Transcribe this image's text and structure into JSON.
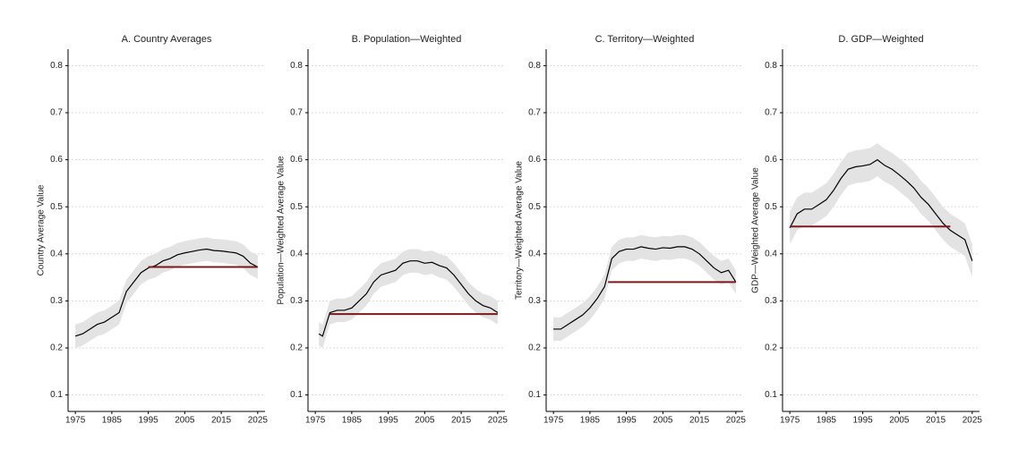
{
  "chart_data": [
    {
      "type": "line",
      "title": "A. Country Averages",
      "ylabel": "Country Average Value",
      "x": [
        1975,
        1977,
        1979,
        1981,
        1983,
        1985,
        1987,
        1989,
        1991,
        1993,
        1995,
        1997,
        1999,
        2001,
        2003,
        2005,
        2007,
        2009,
        2011,
        2013,
        2015,
        2017,
        2019,
        2021,
        2023,
        2025
      ],
      "values": [
        0.225,
        0.23,
        0.24,
        0.25,
        0.255,
        0.265,
        0.275,
        0.32,
        0.34,
        0.36,
        0.37,
        0.375,
        0.385,
        0.39,
        0.398,
        0.402,
        0.405,
        0.408,
        0.41,
        0.407,
        0.406,
        0.404,
        0.402,
        0.395,
        0.38,
        0.372
      ],
      "lower": [
        0.2,
        0.205,
        0.215,
        0.225,
        0.23,
        0.24,
        0.25,
        0.295,
        0.315,
        0.335,
        0.345,
        0.35,
        0.36,
        0.365,
        0.373,
        0.377,
        0.38,
        0.383,
        0.385,
        0.382,
        0.381,
        0.379,
        0.377,
        0.37,
        0.355,
        0.347
      ],
      "upper": [
        0.25,
        0.255,
        0.265,
        0.275,
        0.28,
        0.29,
        0.3,
        0.345,
        0.365,
        0.385,
        0.395,
        0.4,
        0.41,
        0.415,
        0.423,
        0.427,
        0.43,
        0.433,
        0.435,
        0.432,
        0.431,
        0.429,
        0.427,
        0.42,
        0.405,
        0.397
      ],
      "reference": {
        "value": 0.372,
        "x": [
          1995,
          2025
        ]
      },
      "color": "#000000",
      "band_color": "#e3e3e3",
      "reference_color": "#7b1a1a",
      "xlim": [
        1973,
        2027
      ],
      "ylim": [
        0.065,
        0.835
      ],
      "xticks": [
        1975,
        1985,
        1995,
        2005,
        2015,
        2025
      ],
      "yticks": [
        0.1,
        0.2,
        0.3,
        0.4,
        0.5,
        0.6,
        0.7,
        0.8
      ],
      "grid": true
    },
    {
      "type": "line",
      "title": "B. Population—Weighted",
      "ylabel": "Population—Weighted Average Value",
      "x": [
        1976,
        1977,
        1979,
        1981,
        1983,
        1985,
        1987,
        1989,
        1991,
        1993,
        1995,
        1997,
        1999,
        2001,
        2003,
        2005,
        2007,
        2009,
        2011,
        2013,
        2015,
        2017,
        2019,
        2021,
        2023,
        2025
      ],
      "values": [
        0.23,
        0.225,
        0.275,
        0.28,
        0.28,
        0.285,
        0.3,
        0.315,
        0.34,
        0.355,
        0.36,
        0.365,
        0.38,
        0.385,
        0.385,
        0.38,
        0.382,
        0.375,
        0.37,
        0.355,
        0.335,
        0.315,
        0.3,
        0.29,
        0.285,
        0.275
      ],
      "lower": [
        0.205,
        0.2,
        0.25,
        0.255,
        0.255,
        0.26,
        0.275,
        0.29,
        0.315,
        0.33,
        0.335,
        0.34,
        0.355,
        0.36,
        0.36,
        0.355,
        0.357,
        0.35,
        0.345,
        0.33,
        0.31,
        0.29,
        0.275,
        0.265,
        0.26,
        0.25
      ],
      "upper": [
        0.255,
        0.25,
        0.3,
        0.305,
        0.305,
        0.31,
        0.325,
        0.34,
        0.365,
        0.38,
        0.385,
        0.39,
        0.405,
        0.41,
        0.41,
        0.405,
        0.407,
        0.4,
        0.395,
        0.38,
        0.36,
        0.34,
        0.325,
        0.315,
        0.31,
        0.3
      ],
      "reference": {
        "value": 0.272,
        "x": [
          1979,
          2025
        ]
      },
      "color": "#000000",
      "band_color": "#e3e3e3",
      "reference_color": "#7b1a1a",
      "xlim": [
        1973,
        2027
      ],
      "ylim": [
        0.065,
        0.835
      ],
      "xticks": [
        1975,
        1985,
        1995,
        2005,
        2015,
        2025
      ],
      "yticks": [
        0.1,
        0.2,
        0.3,
        0.4,
        0.5,
        0.6,
        0.7,
        0.8
      ],
      "grid": true
    },
    {
      "type": "line",
      "title": "C. Territory—Weighted",
      "ylabel": "Territory—Weighted Average Value",
      "x": [
        1975,
        1977,
        1979,
        1981,
        1983,
        1985,
        1987,
        1989,
        1991,
        1993,
        1995,
        1997,
        1999,
        2001,
        2003,
        2005,
        2007,
        2009,
        2011,
        2013,
        2015,
        2017,
        2019,
        2021,
        2023,
        2025
      ],
      "values": [
        0.24,
        0.24,
        0.25,
        0.26,
        0.27,
        0.285,
        0.305,
        0.33,
        0.39,
        0.405,
        0.41,
        0.41,
        0.415,
        0.412,
        0.41,
        0.413,
        0.412,
        0.415,
        0.415,
        0.41,
        0.4,
        0.385,
        0.37,
        0.36,
        0.365,
        0.34
      ],
      "lower": [
        0.215,
        0.215,
        0.225,
        0.235,
        0.245,
        0.26,
        0.28,
        0.305,
        0.365,
        0.38,
        0.385,
        0.385,
        0.39,
        0.387,
        0.385,
        0.388,
        0.387,
        0.39,
        0.39,
        0.385,
        0.375,
        0.36,
        0.345,
        0.335,
        0.34,
        0.315
      ],
      "upper": [
        0.265,
        0.265,
        0.275,
        0.285,
        0.295,
        0.31,
        0.33,
        0.355,
        0.415,
        0.43,
        0.435,
        0.435,
        0.44,
        0.437,
        0.435,
        0.438,
        0.437,
        0.44,
        0.44,
        0.435,
        0.425,
        0.41,
        0.395,
        0.385,
        0.39,
        0.365
      ],
      "reference": {
        "value": 0.34,
        "x": [
          1990,
          2025
        ]
      },
      "color": "#000000",
      "band_color": "#e3e3e3",
      "reference_color": "#7b1a1a",
      "xlim": [
        1973,
        2027
      ],
      "ylim": [
        0.065,
        0.835
      ],
      "xticks": [
        1975,
        1985,
        1995,
        2005,
        2015,
        2025
      ],
      "yticks": [
        0.1,
        0.2,
        0.3,
        0.4,
        0.5,
        0.6,
        0.7,
        0.8
      ],
      "grid": true
    },
    {
      "type": "line",
      "title": "D. GDP—Weighted",
      "ylabel": "GDP—Weighted Average Value",
      "x": [
        1975,
        1977,
        1979,
        1981,
        1983,
        1985,
        1987,
        1989,
        1991,
        1993,
        1995,
        1997,
        1999,
        2001,
        2003,
        2005,
        2007,
        2009,
        2011,
        2013,
        2015,
        2017,
        2019,
        2021,
        2023,
        2025
      ],
      "values": [
        0.455,
        0.485,
        0.495,
        0.495,
        0.505,
        0.515,
        0.535,
        0.56,
        0.58,
        0.585,
        0.587,
        0.59,
        0.6,
        0.588,
        0.58,
        0.568,
        0.555,
        0.54,
        0.52,
        0.505,
        0.485,
        0.465,
        0.45,
        0.44,
        0.43,
        0.385
      ],
      "lower": [
        0.42,
        0.45,
        0.46,
        0.46,
        0.47,
        0.48,
        0.5,
        0.525,
        0.545,
        0.55,
        0.552,
        0.555,
        0.565,
        0.553,
        0.545,
        0.533,
        0.52,
        0.505,
        0.485,
        0.47,
        0.45,
        0.43,
        0.415,
        0.405,
        0.395,
        0.35
      ],
      "upper": [
        0.49,
        0.52,
        0.53,
        0.53,
        0.54,
        0.55,
        0.57,
        0.595,
        0.615,
        0.62,
        0.622,
        0.625,
        0.635,
        0.623,
        0.615,
        0.603,
        0.59,
        0.575,
        0.555,
        0.54,
        0.52,
        0.5,
        0.485,
        0.475,
        0.465,
        0.42
      ],
      "reference": {
        "value": 0.458,
        "x": [
          1975,
          2019
        ]
      },
      "color": "#000000",
      "band_color": "#e3e3e3",
      "reference_color": "#7b1a1a",
      "xlim": [
        1973,
        2027
      ],
      "ylim": [
        0.065,
        0.835
      ],
      "xticks": [
        1975,
        1985,
        1995,
        2005,
        2015,
        2025
      ],
      "yticks": [
        0.1,
        0.2,
        0.3,
        0.4,
        0.5,
        0.6,
        0.7,
        0.8
      ],
      "grid": true
    }
  ]
}
